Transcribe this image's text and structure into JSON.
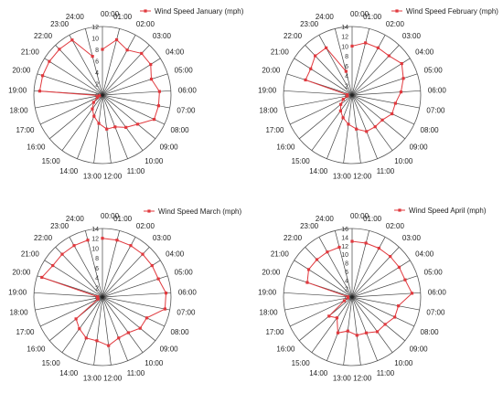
{
  "chart_data": [
    {
      "type": "radar",
      "series_name": "Wind Speed January (mph)",
      "categories": [
        "00:00",
        "01:00",
        "02:00",
        "03:00",
        "04:00",
        "05:00",
        "06:00",
        "07:00",
        "08:00",
        "09:00",
        "10:00",
        "11:00",
        "12:00",
        "13:00",
        "14:00",
        "15:00",
        "16:00",
        "17:00",
        "18:00",
        "19:00",
        "20:00",
        "21:00",
        "22:00",
        "23:00",
        "24:00"
      ],
      "values": [
        8,
        10,
        9,
        10,
        10,
        9,
        10,
        10,
        10,
        8,
        7,
        6,
        6,
        5,
        4,
        3,
        2,
        1,
        0.5,
        11,
        11,
        11,
        11,
        11,
        7
      ],
      "rticks": [
        0,
        2,
        4,
        6,
        8,
        10,
        12
      ],
      "rmax": 12,
      "color": "#e0393e"
    },
    {
      "type": "radar",
      "series_name": "Wind Speed February (mph)",
      "categories": [
        "00:00",
        "01:00",
        "02:00",
        "03:00",
        "04:00",
        "05:00",
        "06:00",
        "07:00",
        "08:00",
        "09:00",
        "10:00",
        "11:00",
        "12:00",
        "13:00",
        "14:00",
        "15:00",
        "16:00",
        "17:00",
        "18:00",
        "19:00",
        "20:00",
        "21:00",
        "22:00",
        "23:00",
        "24:00"
      ],
      "values": [
        10,
        11,
        11,
        11,
        12,
        11,
        10,
        9,
        9,
        8,
        8,
        8,
        7,
        6,
        5,
        4,
        3,
        2,
        1,
        1,
        10,
        10,
        11,
        11,
        5
      ],
      "rticks": [
        0,
        2,
        4,
        6,
        8,
        10,
        12,
        14
      ],
      "rmax": 14,
      "color": "#e0393e"
    },
    {
      "type": "radar",
      "series_name": "Wind Speed March (mph)",
      "categories": [
        "00:00",
        "01:00",
        "02:00",
        "03:00",
        "04:00",
        "05:00",
        "06:00",
        "07:00",
        "08:00",
        "09:00",
        "10:00",
        "11:00",
        "12:00",
        "13:00",
        "14:00",
        "15:00",
        "16:00",
        "17:00",
        "18:00",
        "19:00",
        "20:00",
        "21:00",
        "22:00",
        "23:00",
        "24:00"
      ],
      "values": [
        12,
        12,
        12,
        12,
        12,
        12,
        13,
        13,
        10,
        10,
        9,
        9,
        10,
        9,
        9,
        8,
        7,
        1,
        1,
        1,
        13,
        12,
        12,
        12,
        12
      ],
      "rticks": [
        0,
        2,
        4,
        6,
        8,
        10,
        12,
        14
      ],
      "rmax": 14,
      "color": "#e0393e"
    },
    {
      "type": "radar",
      "series_name": "Wind Speed April (mph)",
      "categories": [
        "00:00",
        "01:00",
        "02:00",
        "03:00",
        "04:00",
        "05:00",
        "06:00",
        "07:00",
        "08:00",
        "09:00",
        "10:00",
        "11:00",
        "12:00",
        "13:00",
        "14:00",
        "15:00",
        "16:00",
        "17:00",
        "18:00",
        "19:00",
        "20:00",
        "21:00",
        "22:00",
        "23:00",
        "24:00"
      ],
      "values": [
        13,
        13,
        13,
        13,
        13,
        13,
        14,
        11,
        11,
        10,
        10,
        9,
        9,
        8,
        9,
        6,
        7,
        2,
        1,
        1,
        11,
        12,
        12,
        12,
        12
      ],
      "rticks": [
        0,
        2,
        4,
        6,
        8,
        10,
        12,
        14,
        16
      ],
      "rmax": 16,
      "color": "#e0393e"
    }
  ]
}
